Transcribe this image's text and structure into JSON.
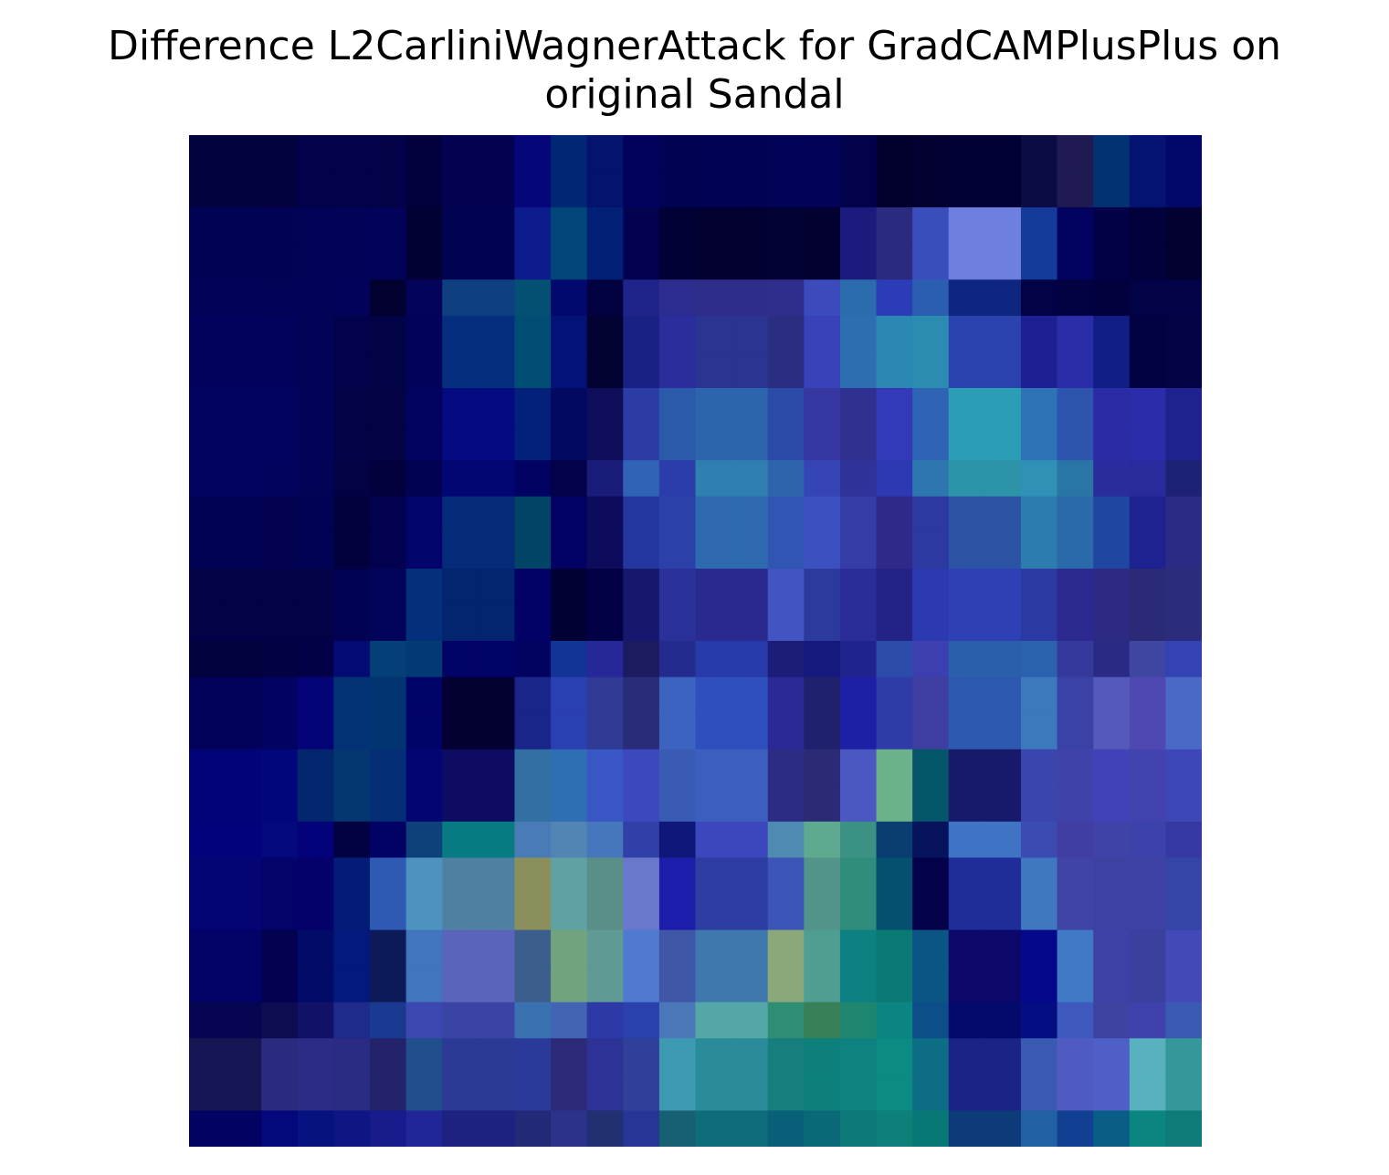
{
  "chart_data": {
    "type": "heatmap",
    "title_lines": [
      "Difference L2CarliniWagnerAttack for GradCAMPlusPlus on",
      "original Sandal"
    ],
    "axes": "off",
    "grid_size": [
      28,
      28
    ],
    "coarse_rows": [
      [
        "#02023f",
        "#02023f",
        "#02024a",
        "#02024a",
        "#020249",
        "#02013d",
        "#020251",
        "#04067a",
        "#012774",
        "#04136d",
        "#02025e",
        "#020253",
        "#020255",
        "#020257",
        "#020259",
        "#02024a",
        "#02012e",
        "#020131",
        "#020135",
        "#0c0c45",
        "#1f1a52",
        "#033272",
        "#041372",
        "#02086a"
      ],
      [
        "#020255",
        "#020254",
        "#020256",
        "#020258",
        "#02025a",
        "#020134",
        "#020253",
        "#0d1c8c",
        "#014678",
        "#022076",
        "#020250",
        "#020136",
        "#020131",
        "#020235",
        "#020131",
        "#1c1a7c",
        "#2a2b7e",
        "#3a4ebb",
        "#6e7fe0",
        "#143a9a",
        "#020260",
        "#020046",
        "#02013c",
        "#020131"
      ],
      [
        "#020258",
        "#020257",
        "#020259",
        "#02025a",
        "#020130",
        "#03035b",
        "#0e3f81",
        "#045073",
        "#01096e",
        "#020241",
        "#1e248a",
        "#2c2c8f",
        "#2e2d8b",
        "#302e8c",
        "#3c4bbb",
        "#2b6caf",
        "#2c3bb7",
        "#2b5eb0",
        "#0e2680",
        "#020247",
        "#020242",
        "#02013e",
        "#020247",
        "#020248"
      ],
      [
        "#02025e",
        "#02025d",
        "#020257",
        "#02024c",
        "#020246",
        "#02025a",
        "#052e7f",
        "#014d73",
        "#021276",
        "#020233",
        "#192184",
        "#2a2d9b",
        "#2a3491",
        "#2a2d80",
        "#3942b8",
        "#2c6eb0",
        "#2b88b2",
        "#2c8bb0",
        "#2a43af",
        "#1e1f92",
        "#2b2ca7",
        "#101e86",
        "#020243",
        "#020245"
      ],
      [
        "#020261",
        "#020260",
        "#020259",
        "#020246",
        "#020244",
        "#020260",
        "#040a7f",
        "#03217a",
        "#020961",
        "#0f0e5b",
        "#2c3ca5",
        "#2c5aaa",
        "#2c64ae",
        "#2b4ba9",
        "#3737a2",
        "#303091",
        "#333ab8",
        "#2f63b4",
        "#2b9eb5",
        "#2d73b6",
        "#2d55ae",
        "#2b2ca5",
        "#2a2ca9",
        "#1d228f"
      ],
      [
        "#020260",
        "#02025f",
        "#020256",
        "#020245",
        "#02013d",
        "#020252",
        "#020672",
        "#020262",
        "#020149",
        "#1a1c7a",
        "#3063b4",
        "#2a3daa",
        "#2f7fb0",
        "#2e64ac",
        "#3645b6",
        "#2f3299",
        "#2c39b3",
        "#2e76af",
        "#2c93a8",
        "#3090b6",
        "#2975a5",
        "#2a2c9e",
        "#2a2a9c",
        "#1e2277"
      ],
      [
        "#020254",
        "#020251",
        "#020254",
        "#02013e",
        "#020150",
        "#02046b",
        "#052a79",
        "#014466",
        "#020264",
        "#0d0c5c",
        "#2437a0",
        "#2c40aa",
        "#2f6ab0",
        "#3055b3",
        "#3c50c0",
        "#343ca6",
        "#2f2a89",
        "#2c39a0",
        "#2c53a3",
        "#2c7cb0",
        "#2a6aab",
        "#1f46a1",
        "#1e2190",
        "#2b2b86"
      ],
      [
        "#020248",
        "#020248",
        "#020247",
        "#020254",
        "#02045c",
        "#032f7c",
        "#03246e",
        "#020165",
        "#020134",
        "#020145",
        "#17186d",
        "#2a3198",
        "#2a2990",
        "#4154c2",
        "#2c3a9e",
        "#2c2c99",
        "#222384",
        "#2c3ab2",
        "#2e40b4",
        "#2a3aa2",
        "#2c2a8f",
        "#2c2a82",
        "#2a2a76",
        "#2b2d7c"
      ],
      [
        "#02023e",
        "#020144",
        "#020148",
        "#030a72",
        "#053f78",
        "#033a74",
        "#020366",
        "#020260",
        "#123497",
        "#262798",
        "#1c1a60",
        "#232c8e",
        "#273aa9",
        "#1c1d79",
        "#15197d",
        "#1f238d",
        "#2c4ca9",
        "#3d3fb1",
        "#2a60ab",
        "#2a62ad",
        "#35399c",
        "#2a2a86",
        "#3e46a1",
        "#3443b4"
      ],
      [
        "#02025a",
        "#020262",
        "#040478",
        "#043375",
        "#033472",
        "#020369",
        "#020131",
        "#192589",
        "#2a3fb0",
        "#2e3a94",
        "#292c78",
        "#3b63bf",
        "#2f4fbc",
        "#2a2995",
        "#20216d",
        "#1d1fa4",
        "#2d3ca9",
        "#3e3fa0",
        "#2d58b0",
        "#3b78bc",
        "#3a42a8",
        "#5659ba",
        "#4e49b2",
        "#4a69c7"
      ],
      [
        "#020279",
        "#02067b",
        "#04266f",
        "#043670",
        "#042f76",
        "#030572",
        "#0d0c62",
        "#3270a3",
        "#2e6eb5",
        "#3857c4",
        "#3b49bd",
        "#3a5bb3",
        "#3c5fbf",
        "#2d2c84",
        "#2a2a75",
        "#4b58c1",
        "#6bb18a",
        "#06566b",
        "#17196a",
        "#3b46ac",
        "#3e42a9",
        "#4142b8",
        "#4343b0",
        "#3e47b7"
      ],
      [
        "#02037a",
        "#03087d",
        "#03027a",
        "#020142",
        "#020166",
        "#0e4179",
        "#077b83",
        "#497cb6",
        "#5284b4",
        "#4677bc",
        "#313fa8",
        "#10177a",
        "#3b47bb",
        "#4e8ab2",
        "#5eaa90",
        "#3b9183",
        "#0a3d72",
        "#07145d",
        "#3e74c3",
        "#3b4bb1",
        "#403ea2",
        "#3f42a7",
        "#3c42a9",
        "#3739a2"
      ],
      [
        "#040475",
        "#030369",
        "#04026a",
        "#041c78",
        "#2f5ab4",
        "#4e92bf",
        "#4e81a1",
        "#8a8f5c",
        "#60a1a3",
        "#5a8f88",
        "#6a78cc",
        "#1d1dab",
        "#2e3da2",
        "#3c55b6",
        "#52938a",
        "#2f8d7c",
        "#04506e",
        "#020149",
        "#1e2d99",
        "#3f78c0",
        "#3f44a5",
        "#3e40a2",
        "#3e42a4",
        "#3445a7"
      ],
      [
        "#030367",
        "#020251",
        "#020b67",
        "#03197c",
        "#0d1a59",
        "#4175bd",
        "#5b64bb",
        "#3b5e8c",
        "#71a47e",
        "#5f9a94",
        "#4f7ad0",
        "#4056a6",
        "#3f78ac",
        "#8aa87a",
        "#4e9e91",
        "#0d8081",
        "#0c7a74",
        "#0b5585",
        "#0c086a",
        "#05088a",
        "#4079c5",
        "#3e41a5",
        "#3b3f9d",
        "#434ab7"
      ],
      [
        "#050551",
        "#0d0c50",
        "#101167",
        "#1f2b8a",
        "#1a3a91",
        "#3c48b0",
        "#3a44a2",
        "#3a72b1",
        "#4364b5",
        "#2d39a6",
        "#2a40ac",
        "#4b78b9",
        "#54a7a6",
        "#2e8d75",
        "#388058",
        "#1e866f",
        "#0a8582",
        "#0c4e88",
        "#04096c",
        "#050d82",
        "#3f59bf",
        "#3e43a2",
        "#3f42ac",
        "#3b5ab1"
      ],
      [
        "#171654",
        "#2a2a7f",
        "#2c2b87",
        "#2a2b83",
        "#22236b",
        "#214f8e",
        "#2b3a94",
        "#2a3a9a",
        "#2b2b7a",
        "#2c3296",
        "#30409a",
        "#3e9ab3",
        "#2a8c9a",
        "#167f7d",
        "#0d807c",
        "#0e827e",
        "#0c8b82",
        "#0d6d85",
        "#1b2386",
        "#3a5ab1",
        "#4f5bc1",
        "#4e60c7",
        "#57b1bf",
        "#349799"
      ],
      [
        "#020263",
        "#03087a",
        "#061280",
        "#0e1585",
        "#181b8c",
        "#202597",
        "#1e2180",
        "#232976",
        "#2c3289",
        "#203070",
        "#263596",
        "#176073",
        "#0f6c7a",
        "#085f78",
        "#096977",
        "#0d7a79",
        "#0e807a",
        "#077876",
        "#0d3b7a",
        "#2161a3",
        "#113f91",
        "#095e85",
        "#0a857f",
        "#0e7b79"
      ]
    ]
  }
}
